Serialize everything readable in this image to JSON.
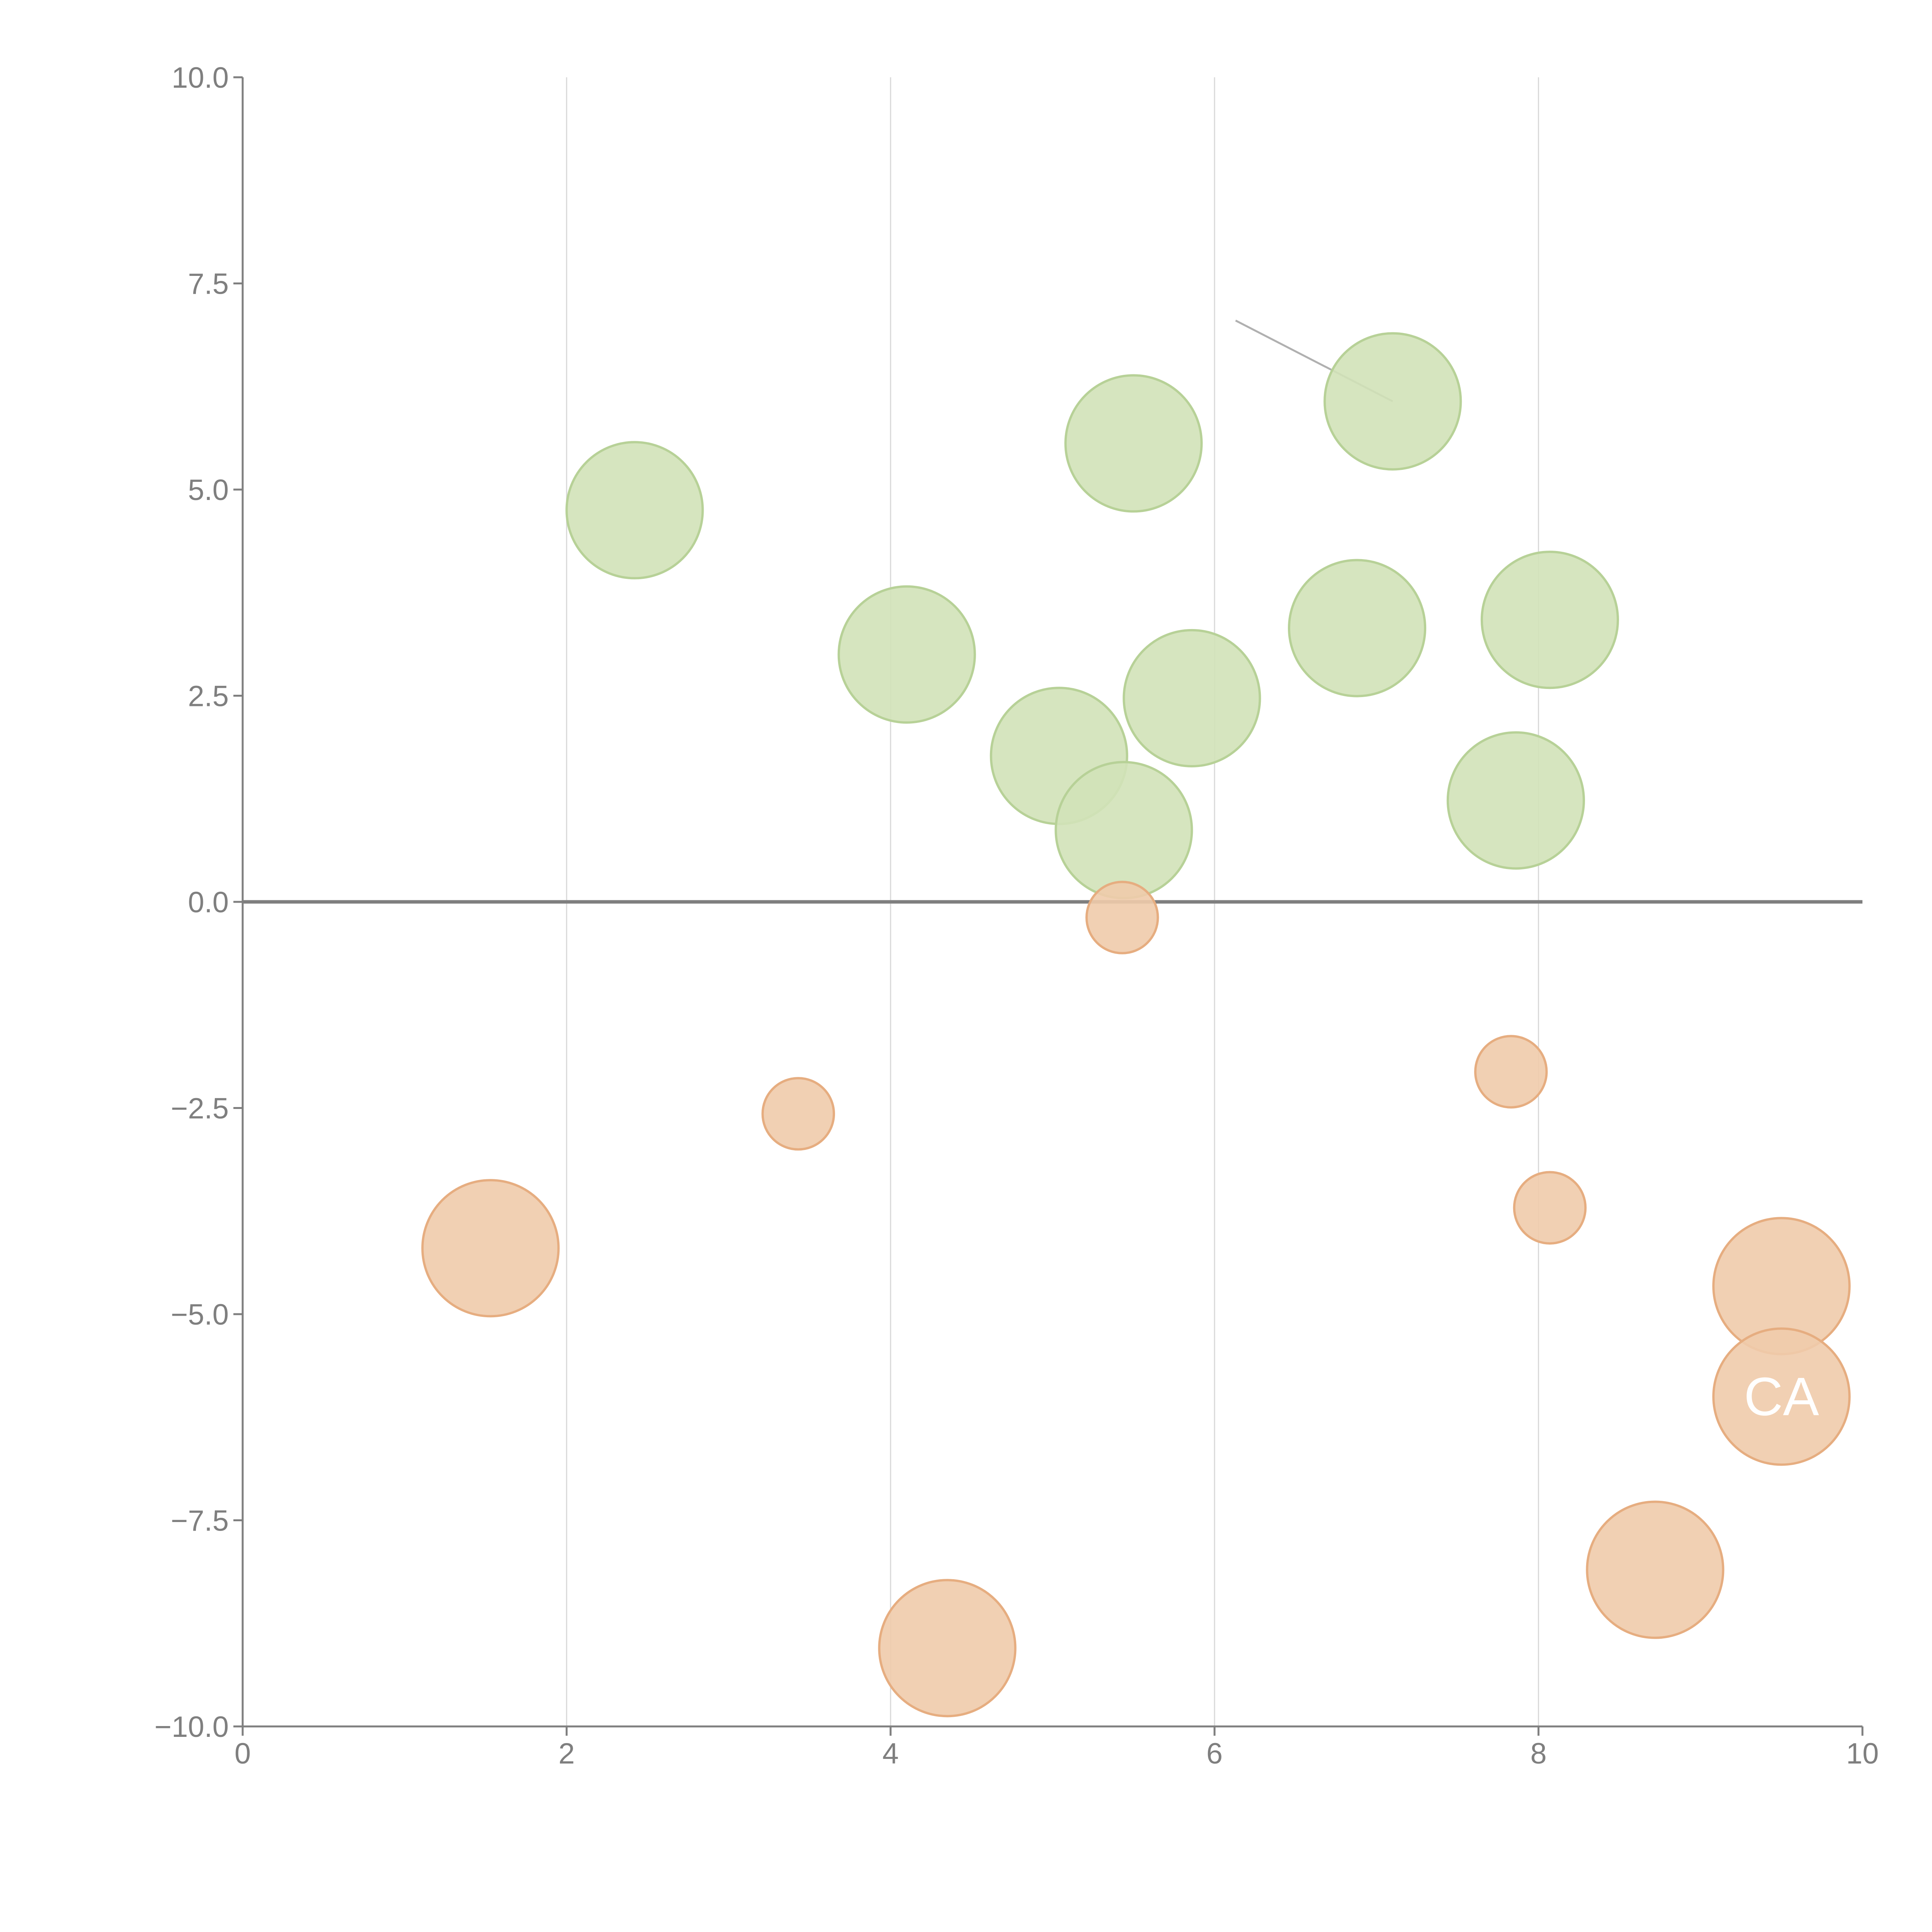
{
  "colors": {
    "positive_fill": "#d2e2b8",
    "positive_stroke": "#b7d197",
    "negative_fill": "#efcbab",
    "negative_stroke": "#e6ad80",
    "axis": "#7f7f7f",
    "grid": "#d9d9d9",
    "tick_text": "#7f7f7f",
    "leader": "#b0b0b0",
    "label_text": "#ffffff"
  },
  "chart_data": {
    "type": "scatter",
    "title": "",
    "xlabel": "",
    "ylabel": "",
    "xlim": [
      0,
      10
    ],
    "ylim": [
      -10,
      10
    ],
    "x_ticks": [
      "0",
      "2",
      "4",
      "6",
      "8",
      "10"
    ],
    "y_ticks": [
      "10.0",
      "7.5",
      "5.0",
      "2.5",
      "0.0",
      "−2.5",
      "−5.0",
      "−7.5",
      "−10.0"
    ],
    "grid": "vertical",
    "zero_line": true,
    "series": [
      {
        "name": "positive",
        "color": "#d2e2b8",
        "points": [
          {
            "x": 2.42,
            "y": 4.75,
            "size": 0.42
          },
          {
            "x": 4.1,
            "y": 3.0,
            "size": 0.42
          },
          {
            "x": 5.04,
            "y": 1.77,
            "size": 0.42
          },
          {
            "x": 5.44,
            "y": 0.87,
            "size": 0.42
          },
          {
            "x": 5.5,
            "y": 5.56,
            "size": 0.42
          },
          {
            "x": 5.86,
            "y": 2.47,
            "size": 0.42
          },
          {
            "x": 6.88,
            "y": 3.32,
            "size": 0.42
          },
          {
            "x": 7.1,
            "y": 6.07,
            "size": 0.42
          },
          {
            "x": 7.86,
            "y": 1.23,
            "size": 0.42
          },
          {
            "x": 8.07,
            "y": 3.42,
            "size": 0.42
          }
        ]
      },
      {
        "name": "negative",
        "color": "#efcbab",
        "points": [
          {
            "x": 1.53,
            "y": -4.2,
            "size": 0.42
          },
          {
            "x": 3.43,
            "y": -2.57,
            "size": 0.22
          },
          {
            "x": 4.35,
            "y": -9.05,
            "size": 0.42
          },
          {
            "x": 5.43,
            "y": -0.19,
            "size": 0.22
          },
          {
            "x": 7.83,
            "y": -2.06,
            "size": 0.22
          },
          {
            "x": 8.07,
            "y": -3.71,
            "size": 0.22
          },
          {
            "x": 8.72,
            "y": -8.1,
            "size": 0.42
          },
          {
            "x": 9.5,
            "y": -4.66,
            "size": 0.42
          },
          {
            "x": 9.5,
            "y": -6.0,
            "size": 0.42,
            "label": "CA"
          }
        ]
      }
    ],
    "annotations": [
      {
        "text": "CA",
        "x": 9.5,
        "y": -6.0
      }
    ],
    "leader_lines": [
      {
        "from": [
          7.1,
          6.07
        ],
        "to": [
          6.13,
          7.05
        ],
        "color": "#b0b0b0"
      }
    ]
  }
}
